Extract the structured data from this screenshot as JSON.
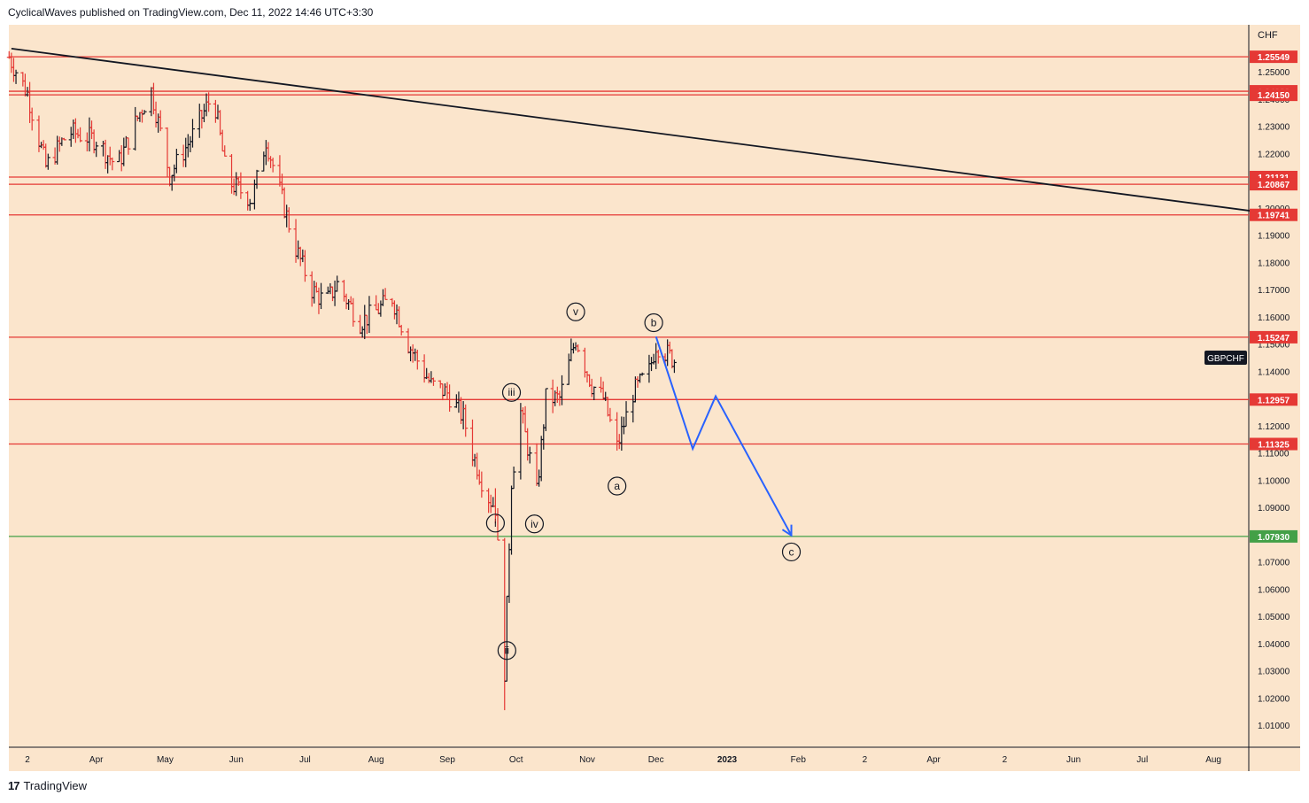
{
  "header": {
    "published": "CyclicalWaves published on TradingView.com, Dec 11, 2022 14:46 UTC+3:30"
  },
  "footer": {
    "logo": "17",
    "brand": "TradingView"
  },
  "colors": {
    "background": "#fbe5cc",
    "level": "#e53935",
    "support": "#43a047",
    "trendline": "#131722",
    "projection": "#2962ff",
    "up_bar": "#131722",
    "down_bar": "#e53935"
  },
  "chart_data": {
    "type": "ohlc",
    "symbol": "GBPCHF",
    "currency": "CHF",
    "ylim": [
      1.0,
      1.265
    ],
    "y_ticks": [
      "1.25000",
      "1.24000",
      "1.23000",
      "1.22000",
      "1.21000",
      "1.20000",
      "1.19000",
      "1.18000",
      "1.17000",
      "1.16000",
      "1.15000",
      "1.14000",
      "1.13000",
      "1.12000",
      "1.11000",
      "1.10000",
      "1.09000",
      "1.08000",
      "1.07000",
      "1.06000",
      "1.05000",
      "1.04000",
      "1.03000",
      "1.02000",
      "1.01000"
    ],
    "y_tick_values": [
      1.25,
      1.24,
      1.23,
      1.22,
      1.21,
      1.2,
      1.19,
      1.18,
      1.17,
      1.16,
      1.15,
      1.14,
      1.13,
      1.12,
      1.11,
      1.1,
      1.09,
      1.08,
      1.07,
      1.06,
      1.05,
      1.04,
      1.03,
      1.02,
      1.01
    ],
    "x_labels": [
      {
        "label": "2",
        "date": "2022-03-02"
      },
      {
        "label": "Apr",
        "date": "2022-04-01"
      },
      {
        "label": "May",
        "date": "2022-05-01"
      },
      {
        "label": "Jun",
        "date": "2022-06-01"
      },
      {
        "label": "Jul",
        "date": "2022-07-01"
      },
      {
        "label": "Aug",
        "date": "2022-08-01"
      },
      {
        "label": "Sep",
        "date": "2022-09-01"
      },
      {
        "label": "Oct",
        "date": "2022-10-01"
      },
      {
        "label": "Nov",
        "date": "2022-11-01"
      },
      {
        "label": "Dec",
        "date": "2022-12-01"
      },
      {
        "label": "2023",
        "date": "2023-01-01",
        "bold": true
      },
      {
        "label": "Feb",
        "date": "2023-02-01"
      },
      {
        "label": "2",
        "date": "2023-03-02"
      },
      {
        "label": "Apr",
        "date": "2023-04-01"
      },
      {
        "label": "2",
        "date": "2023-05-02"
      },
      {
        "label": "Jun",
        "date": "2023-06-01"
      },
      {
        "label": "Jul",
        "date": "2023-07-01"
      },
      {
        "label": "Aug",
        "date": "2023-08-01"
      }
    ],
    "levels": [
      {
        "value": 1.25549,
        "label": "1.25549",
        "color": "red"
      },
      {
        "value": 1.24282,
        "label": "1.24282",
        "color": "red"
      },
      {
        "value": 1.2415,
        "label": "1.24150",
        "color": "red"
      },
      {
        "value": 1.21131,
        "label": "1.21131",
        "color": "red"
      },
      {
        "value": 1.20867,
        "label": "1.20867",
        "color": "red"
      },
      {
        "value": 1.19741,
        "label": "1.19741",
        "color": "red"
      },
      {
        "value": 1.15247,
        "label": "1.15247",
        "color": "red"
      },
      {
        "value": 1.12957,
        "label": "1.12957",
        "color": "red"
      },
      {
        "value": 1.11325,
        "label": "1.11325",
        "color": "red"
      },
      {
        "value": 1.0793,
        "label": "1.07930",
        "color": "green"
      }
    ],
    "trendline": [
      {
        "date": "2022-02-23",
        "value": 1.2585
      },
      {
        "date": "2023-08-28",
        "value": 1.1977
      }
    ],
    "projection": [
      {
        "date": "2022-12-01",
        "value": 1.1527
      },
      {
        "date": "2022-12-17",
        "value": 1.1115
      },
      {
        "date": "2022-12-27",
        "value": 1.1308
      },
      {
        "date": "2023-01-29",
        "value": 1.0797
      }
    ],
    "wave_labels": [
      {
        "text": "i",
        "date": "2022-09-22",
        "value": 1.0842
      },
      {
        "text": "ii",
        "date": "2022-09-27",
        "value": 1.0374
      },
      {
        "text": "iii",
        "date": "2022-09-29",
        "value": 1.1322
      },
      {
        "text": "iv",
        "date": "2022-10-09",
        "value": 1.0839
      },
      {
        "text": "v",
        "date": "2022-10-27",
        "value": 1.1618
      },
      {
        "text": "a",
        "date": "2022-11-14",
        "value": 1.0978
      },
      {
        "text": "b",
        "date": "2022-11-30",
        "value": 1.1578
      },
      {
        "text": "c",
        "date": "2023-01-29",
        "value": 1.0736
      }
    ],
    "anchors": [
      {
        "date": "2022-02-22",
        "value": 1.2553
      },
      {
        "date": "2022-03-02",
        "value": 1.242
      },
      {
        "date": "2022-03-10",
        "value": 1.215
      },
      {
        "date": "2022-03-20",
        "value": 1.228
      },
      {
        "date": "2022-04-01",
        "value": 1.225
      },
      {
        "date": "2022-04-10",
        "value": 1.215
      },
      {
        "date": "2022-04-20",
        "value": 1.235
      },
      {
        "date": "2022-04-25",
        "value": 1.243
      },
      {
        "date": "2022-05-03",
        "value": 1.212
      },
      {
        "date": "2022-05-12",
        "value": 1.225
      },
      {
        "date": "2022-05-22",
        "value": 1.242
      },
      {
        "date": "2022-05-28",
        "value": 1.21
      },
      {
        "date": "2022-06-08",
        "value": 1.203
      },
      {
        "date": "2022-06-14",
        "value": 1.225
      },
      {
        "date": "2022-06-22",
        "value": 1.2
      },
      {
        "date": "2022-06-27",
        "value": 1.185
      },
      {
        "date": "2022-07-04",
        "value": 1.17
      },
      {
        "date": "2022-07-10",
        "value": 1.165
      },
      {
        "date": "2022-07-15",
        "value": 1.172
      },
      {
        "date": "2022-07-25",
        "value": 1.158
      },
      {
        "date": "2022-08-01",
        "value": 1.162
      },
      {
        "date": "2022-08-08",
        "value": 1.167
      },
      {
        "date": "2022-08-15",
        "value": 1.15
      },
      {
        "date": "2022-08-25",
        "value": 1.135
      },
      {
        "date": "2022-09-01",
        "value": 1.132
      },
      {
        "date": "2022-09-08",
        "value": 1.123
      },
      {
        "date": "2022-09-12",
        "value": 1.11
      },
      {
        "date": "2022-09-18",
        "value": 1.095
      },
      {
        "date": "2022-09-22",
        "value": 1.09
      },
      {
        "date": "2022-09-26",
        "value": 1.03
      },
      {
        "date": "2022-09-29",
        "value": 1.1
      },
      {
        "date": "2022-10-03",
        "value": 1.125
      },
      {
        "date": "2022-10-10",
        "value": 1.095
      },
      {
        "date": "2022-10-14",
        "value": 1.13
      },
      {
        "date": "2022-10-20",
        "value": 1.13
      },
      {
        "date": "2022-10-27",
        "value": 1.152
      },
      {
        "date": "2022-11-03",
        "value": 1.135
      },
      {
        "date": "2022-11-08",
        "value": 1.13
      },
      {
        "date": "2022-11-14",
        "value": 1.112
      },
      {
        "date": "2022-11-21",
        "value": 1.132
      },
      {
        "date": "2022-11-28",
        "value": 1.14
      },
      {
        "date": "2022-12-01",
        "value": 1.15
      },
      {
        "date": "2022-12-09",
        "value": 1.144
      }
    ]
  }
}
